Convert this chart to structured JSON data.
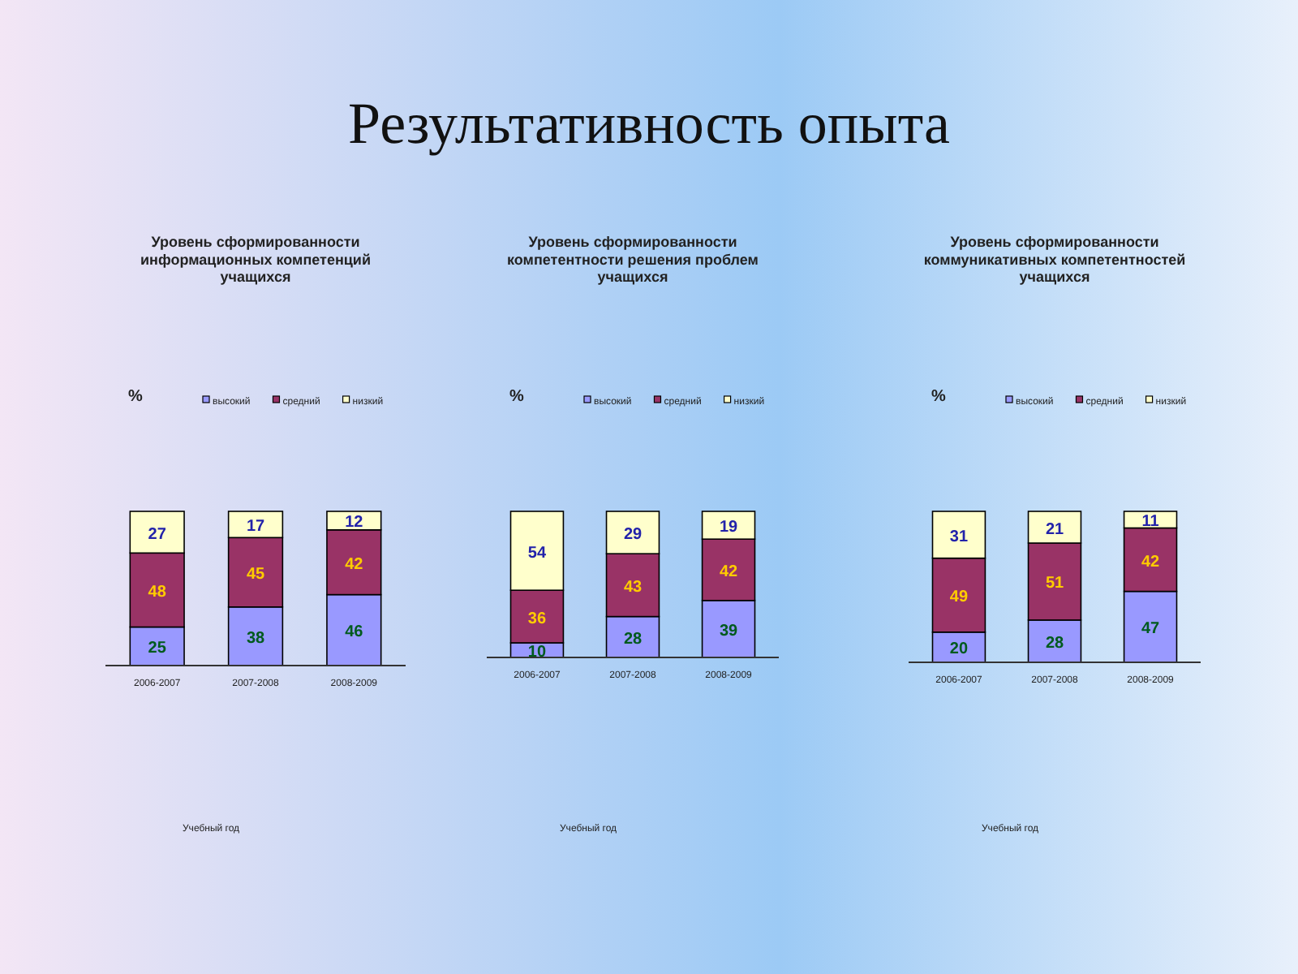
{
  "chart_data": [
    {
      "type": "other",
      "title": "Результативность опыта"
    },
    {
      "type": "bar",
      "title": "Уровень сформированности информационных компетенций учащихся",
      "ylabel": "%",
      "xlabel": "Учебный год",
      "categories": [
        "2006-2007",
        "2007-2008",
        "2008-2009"
      ],
      "stacked": true,
      "data_labels": true,
      "legend": "top",
      "tick_labels": "x",
      "series": [
        {
          "name": "высокий",
          "color": "#9999ff",
          "values": [
            25,
            38,
            46
          ]
        },
        {
          "name": "средний",
          "color": "#993366",
          "values": [
            48,
            45,
            42
          ]
        },
        {
          "name": "низкий",
          "color": "#ffffcc",
          "values": [
            27,
            17,
            12
          ]
        }
      ]
    },
    {
      "type": "bar",
      "title": "Уровень сформированности компетентности решения проблем учащихся",
      "ylabel": "%",
      "xlabel": "Учебный год",
      "categories": [
        "2006-2007",
        "2007-2008",
        "2008-2009"
      ],
      "stacked": true,
      "data_labels": true,
      "legend": "top",
      "tick_labels": "x",
      "series": [
        {
          "name": "высокий",
          "color": "#9999ff",
          "values": [
            10,
            28,
            39
          ]
        },
        {
          "name": "средний",
          "color": "#993366",
          "values": [
            36,
            43,
            42
          ]
        },
        {
          "name": "низкий",
          "color": "#ffffcc",
          "values": [
            54,
            29,
            19
          ]
        }
      ]
    },
    {
      "type": "bar",
      "title": "Уровень сформированности коммуникативных компетентностей учащихся",
      "ylabel": "%",
      "xlabel": "Учебный год",
      "categories": [
        "2006-2007",
        "2007-2008",
        "2008-2009"
      ],
      "stacked": true,
      "data_labels": true,
      "legend": "top",
      "tick_labels": "x",
      "series": [
        {
          "name": "высокий",
          "color": "#9999ff",
          "values": [
            20,
            28,
            47
          ]
        },
        {
          "name": "средний",
          "color": "#993366",
          "values": [
            49,
            51,
            42
          ]
        },
        {
          "name": "низкий",
          "color": "#ffffcc",
          "values": [
            31,
            21,
            11
          ]
        }
      ]
    }
  ]
}
